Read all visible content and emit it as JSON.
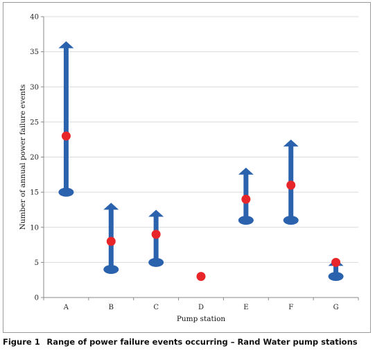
{
  "caption": {
    "label": "Figure 1",
    "text": "Range of power failure events occurring – Rand Water pump stations"
  },
  "chart_data": {
    "type": "scatter",
    "xlabel": "Pump station",
    "ylabel": "Number of annual power failure events",
    "ylim": [
      0,
      40
    ],
    "yticks": [
      0,
      5,
      10,
      15,
      20,
      25,
      30,
      35,
      40
    ],
    "grid": true,
    "categories": [
      "A",
      "B",
      "C",
      "D",
      "E",
      "F",
      "G"
    ],
    "ranges": [
      {
        "station": "A",
        "min": 15,
        "max": 36.5,
        "point": 23
      },
      {
        "station": "B",
        "min": 4,
        "max": 13.5,
        "point": 8
      },
      {
        "station": "C",
        "min": 5,
        "max": 12.5,
        "point": 9
      },
      {
        "station": "D",
        "min": null,
        "max": null,
        "point": 3
      },
      {
        "station": "E",
        "min": 11,
        "max": 18.5,
        "point": 14
      },
      {
        "station": "F",
        "min": 11,
        "max": 22.5,
        "point": 16
      },
      {
        "station": "G",
        "min": 3,
        "max": 5.5,
        "point": 5
      }
    ],
    "colors": {
      "range": "#2b62ad",
      "point": "#e8262a",
      "grid": "#d9d9d9",
      "axis": "#888888"
    }
  }
}
